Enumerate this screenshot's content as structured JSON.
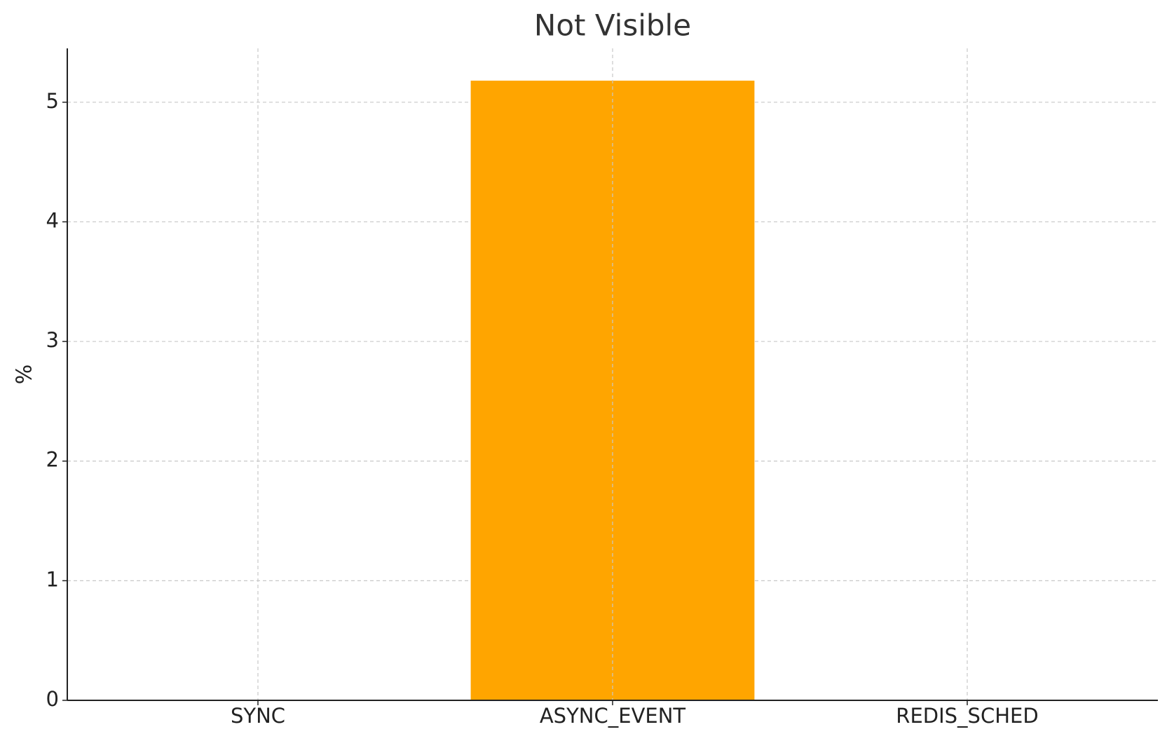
{
  "chart_data": {
    "type": "bar",
    "title": "Not Visible",
    "ylabel": "%",
    "categories": [
      "SYNC",
      "ASYNC_EVENT",
      "REDIS_SCHED"
    ],
    "values": [
      0,
      5.18,
      0
    ],
    "color": "#ffa500",
    "ylim": [
      0,
      5.45
    ],
    "yticks": [
      0,
      1,
      2,
      3,
      4,
      5
    ],
    "grid": true
  }
}
